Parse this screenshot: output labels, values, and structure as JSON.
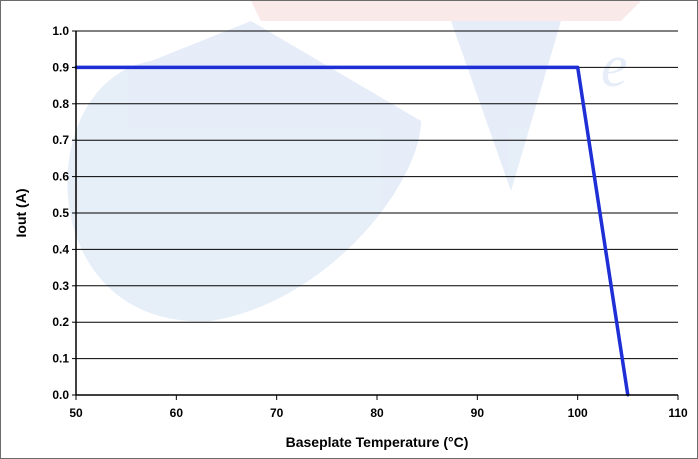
{
  "chart_data": {
    "type": "line",
    "title": "",
    "xlabel": "Baseplate Temperature (°C)",
    "ylabel": "Iout (A)",
    "xlim": [
      50,
      110
    ],
    "ylim": [
      0.0,
      1.0
    ],
    "x_ticks": [
      "50",
      "60",
      "70",
      "80",
      "90",
      "100",
      "110"
    ],
    "y_ticks": [
      "0.0",
      "0.1",
      "0.2",
      "0.3",
      "0.4",
      "0.5",
      "0.6",
      "0.7",
      "0.8",
      "0.9",
      "1.0"
    ],
    "grid": true,
    "legend": "none",
    "series": [
      {
        "x": [
          50,
          100,
          105
        ],
        "y": [
          0.9,
          0.9,
          0.0
        ],
        "color": "#1f2fd6"
      }
    ]
  }
}
